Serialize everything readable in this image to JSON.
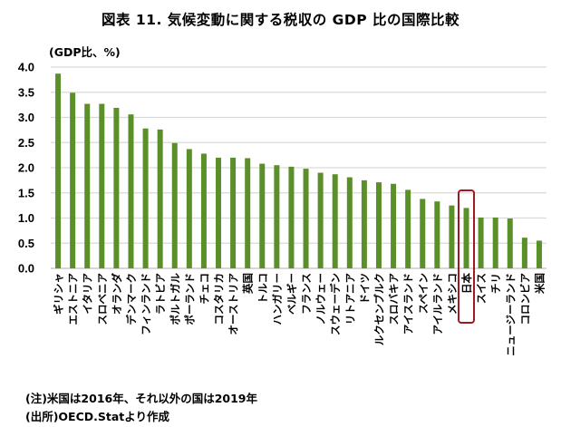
{
  "chart_data": {
    "type": "bar",
    "title": "図表 11.  気候変動に関する税収の GDP 比の国際比較",
    "ylabel": "(GDP比、%)",
    "xlabel": "",
    "ylim": [
      0,
      4.0
    ],
    "yticks": [
      "0.0",
      "0.5",
      "1.0",
      "1.5",
      "2.0",
      "2.5",
      "3.0",
      "3.5",
      "4.0"
    ],
    "grid": true,
    "legend": "none",
    "bar_color": "#5b8f29",
    "highlight_color": "#a01820",
    "highlight_category": "日本",
    "categories": [
      "ギリシャ",
      "エストニア",
      "イタリア",
      "スロベニア",
      "オランダ",
      "デンマーク",
      "フィンランド",
      "ラトビア",
      "ポルトガル",
      "ポーランド",
      "チェコ",
      "コスタリカ",
      "オーストリア",
      "英国",
      "トルコ",
      "ハンガリー",
      "ベルギー",
      "フランス",
      "ノルウェー",
      "スウェーデン",
      "リトアニア",
      "ドイツ",
      "ルクセンブルク",
      "スロバキア",
      "アイスランド",
      "スペイン",
      "アイルランド",
      "メキシコ",
      "日本",
      "スイス",
      "チリ",
      "ニュージーランド",
      "コロンビア",
      "米国"
    ],
    "values": [
      3.87,
      3.49,
      3.27,
      3.27,
      3.19,
      3.06,
      2.78,
      2.76,
      2.49,
      2.37,
      2.28,
      2.2,
      2.2,
      2.19,
      2.08,
      2.05,
      2.02,
      1.98,
      1.9,
      1.87,
      1.81,
      1.75,
      1.71,
      1.68,
      1.56,
      1.38,
      1.33,
      1.25,
      1.2,
      1.01,
      1.01,
      0.99,
      0.61,
      0.55
    ]
  },
  "notes": {
    "note": "(注)米国は2016年、それ以外の国は2019年",
    "source": "(出所)OECD.Statより作成"
  }
}
